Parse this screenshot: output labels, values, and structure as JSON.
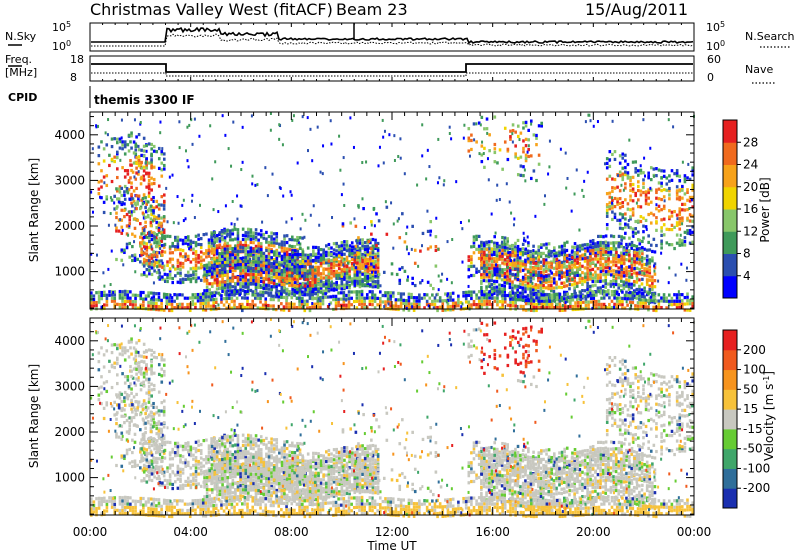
{
  "header": {
    "station": "Christmas Valley West (fitACF)",
    "beam": "Beam 23",
    "date": "15/Aug/2011"
  },
  "top_panel": {
    "left_label": "N.Sky",
    "left_ticks": [
      "10^5",
      "10^0"
    ],
    "right_ticks": [
      "10^5",
      "10^0"
    ],
    "right_label": "N.Search"
  },
  "freq_panel": {
    "left_label_1": "Freq.",
    "left_label_2": "[MHz]",
    "left_ticks": [
      "18",
      "8"
    ],
    "right_ticks": [
      "60",
      "0"
    ],
    "right_label": "Nave"
  },
  "cpid_panel": {
    "label": "CPID",
    "mode": "themis 3300 IF"
  },
  "chart_data": [
    {
      "type": "heatmap",
      "title": "",
      "xlabel": "Time UT",
      "ylabel": "Slant Range [km]",
      "x_ticks": [
        "00:00",
        "04:00",
        "08:00",
        "12:00",
        "16:00",
        "20:00",
        "00:00"
      ],
      "xlim_hours": [
        0,
        24
      ],
      "y_ticks": [
        "1000",
        "2000",
        "3000",
        "4000"
      ],
      "ylim": [
        180,
        4500
      ],
      "colorbar": {
        "label": "Power [dB]",
        "ticks": [
          "4",
          "8",
          "12",
          "16",
          "20",
          "24",
          "28"
        ],
        "colors": [
          "#0000ff",
          "#2b4fb0",
          "#3f9a5a",
          "#88c66a",
          "#f0d400",
          "#f7a21a",
          "#f06a1e",
          "#e62020"
        ]
      }
    },
    {
      "type": "heatmap",
      "title": "",
      "xlabel": "Time UT",
      "ylabel": "Slant Range [km]",
      "x_ticks": [
        "00:00",
        "04:00",
        "08:00",
        "12:00",
        "16:00",
        "20:00",
        "00:00"
      ],
      "xlim_hours": [
        0,
        24
      ],
      "y_ticks": [
        "1000",
        "2000",
        "3000",
        "4000"
      ],
      "ylim": [
        180,
        4500
      ],
      "colorbar": {
        "label": "Velocity [m s^-1]",
        "ticks": [
          "200",
          "100",
          "50",
          "15",
          "-15",
          "-50",
          "-100",
          "-200"
        ],
        "colors": [
          "#1a2fb0",
          "#2f6e9a",
          "#3fa66a",
          "#66cc33",
          "#c8c8c0",
          "#f7c23a",
          "#f7941e",
          "#f05a1e",
          "#e62020"
        ]
      }
    }
  ]
}
